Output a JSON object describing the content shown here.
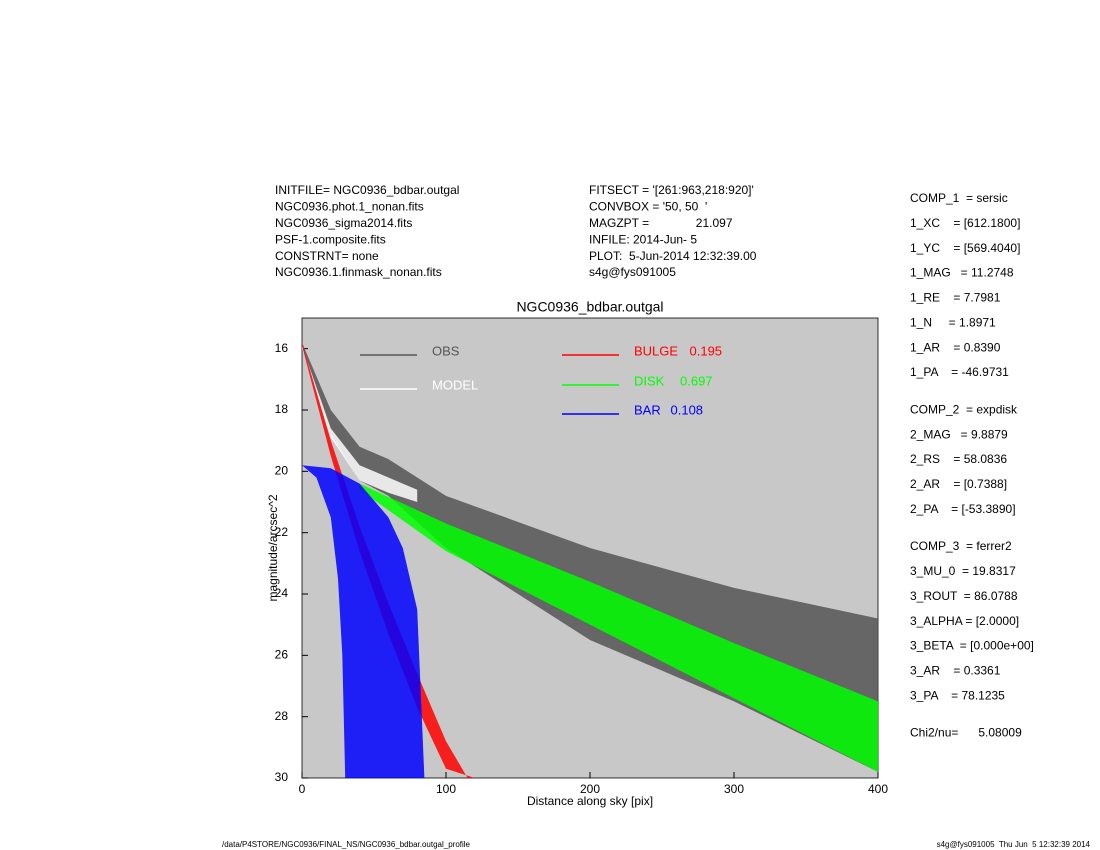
{
  "header": {
    "left": [
      "INITFILE= NGC0936_bdbar.outgal",
      "NGC0936.phot.1_nonan.fits",
      "NGC0936_sigma2014.fits",
      "PSF-1.composite.fits",
      "CONSTRNT= none",
      "NGC0936.1.finmask_nonan.fits"
    ],
    "middle": [
      "FITSECT = '[261:963,218:920]'",
      "CONVBOX = '50, 50  '",
      "MAGZPT =              21.097",
      "INFILE: 2014-Jun- 5",
      "PLOT:  5-Jun-2014 12:32:39.00",
      "s4g@fys091005"
    ]
  },
  "params": [
    [
      "COMP_1  = sersic",
      "1_XC    = [612.1800]",
      "1_YC    = [569.4040]",
      "1_MAG   = 11.2748",
      "1_RE    = 7.7981",
      "1_N     = 1.8971",
      "1_AR    = 0.8390",
      "1_PA    = -46.9731"
    ],
    [
      "COMP_2  = expdisk",
      "2_MAG   = 9.8879",
      "2_RS    = 58.0836",
      "2_AR    = [0.7388]",
      "2_PA    = [-53.3890]"
    ],
    [
      "COMP_3  = ferrer2",
      "3_MU_0  = 19.8317",
      "3_ROUT  = 86.0788",
      "3_ALPHA = [2.0000]",
      "3_BETA  = [0.000e+00]",
      "3_AR    = 0.3361",
      "3_PA    = 78.1235"
    ],
    [
      "Chi2/nu=      5.08009"
    ]
  ],
  "footer": {
    "left": "/data/P4STORE/NGC0936/FINAL_NS/NGC0936_bdbar.outgal_profile",
    "right": "s4g@fys091005  Thu Jun  5 12:32:39 2014"
  },
  "chart_data": {
    "type": "band",
    "title": "NGC0936_bdbar.outgal",
    "x_label": "Distance along sky [pix]",
    "y_label": "magnitude/arcsec^2",
    "xlim": [
      0,
      400
    ],
    "ylim": [
      30,
      15
    ],
    "xticks": [
      0,
      100,
      200,
      300,
      400
    ],
    "yticks": [
      16,
      18,
      20,
      22,
      24,
      26,
      28,
      30
    ],
    "background": "#c8c8c8",
    "series": [
      {
        "name": "OBS",
        "color": "#555555",
        "upper": {
          "x": [
            0,
            20,
            40,
            60,
            100,
            200,
            300,
            400
          ],
          "values": [
            15.8,
            18.0,
            19.2,
            19.6,
            20.8,
            22.5,
            23.8,
            24.8
          ]
        },
        "lower": {
          "x": [
            0,
            20,
            40,
            60,
            100,
            200,
            300,
            400
          ],
          "values": [
            16.0,
            18.8,
            20.3,
            20.8,
            22.5,
            25.5,
            27.5,
            29.8
          ]
        }
      },
      {
        "name": "MODEL",
        "color": "#ffffff",
        "upper": {
          "x": [
            0,
            20,
            40,
            60,
            80
          ],
          "values": [
            15.9,
            18.6,
            19.8,
            20.2,
            20.6
          ]
        },
        "lower": {
          "x": [
            0,
            20,
            40,
            60,
            80
          ],
          "values": [
            16.0,
            18.9,
            20.3,
            20.7,
            21.0
          ]
        }
      },
      {
        "name": "BULGE",
        "fraction": 0.195,
        "color": "#ff0000",
        "upper": {
          "x": [
            0,
            20,
            40,
            60,
            80,
            100,
            115
          ],
          "values": [
            15.8,
            19.0,
            21.8,
            24.3,
            26.6,
            28.8,
            30
          ]
        },
        "lower": {
          "x": [
            0,
            20,
            40,
            60,
            80,
            100,
            120
          ],
          "values": [
            15.9,
            19.5,
            22.6,
            25.3,
            27.7,
            29.7,
            30
          ]
        }
      },
      {
        "name": "DISK",
        "fraction": 0.697,
        "color": "#00ff00",
        "upper": {
          "x": [
            40,
            100,
            200,
            300,
            400
          ],
          "values": [
            20.4,
            21.7,
            23.6,
            25.6,
            27.5
          ]
        },
        "lower": {
          "x": [
            40,
            100,
            200,
            300,
            400
          ],
          "values": [
            20.6,
            22.6,
            25.0,
            27.4,
            29.8
          ]
        }
      },
      {
        "name": "BAR",
        "fraction": 0.108,
        "color": "#0000ff",
        "upper": {
          "x": [
            0,
            20,
            40,
            60,
            70,
            80,
            85
          ],
          "values": [
            19.8,
            19.9,
            20.4,
            21.5,
            22.5,
            24.5,
            30
          ]
        },
        "lower": {
          "x": [
            0,
            10,
            20,
            25,
            28,
            30
          ],
          "values": [
            19.8,
            20.2,
            21.5,
            23.5,
            26,
            30
          ]
        }
      }
    ]
  }
}
